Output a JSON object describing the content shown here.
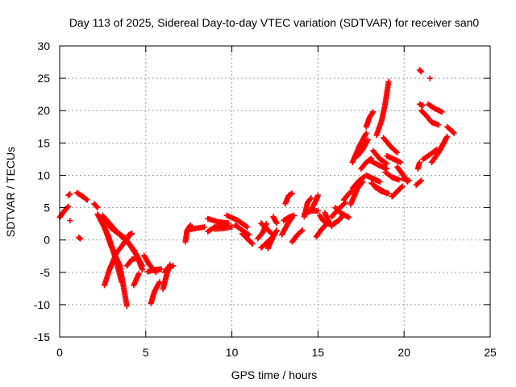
{
  "chart_data": {
    "type": "scatter",
    "title": "Day 113 of 2025, Sidereal Day-to-day VTEC variation (SDTVAR) for receiver san0",
    "xlabel": "GPS time / hours",
    "ylabel": "SDTVAR / TECUs",
    "xlim": [
      0,
      25
    ],
    "ylim": [
      -15,
      30
    ],
    "xticks": [
      0,
      5,
      10,
      15,
      20,
      25
    ],
    "yticks": [
      -15,
      -10,
      -5,
      0,
      5,
      10,
      15,
      20,
      25,
      30
    ],
    "grid": true,
    "marker": "+",
    "color": "#ff0000",
    "segments": [
      [
        [
          0.0,
          3.5
        ],
        [
          0.3,
          4.6
        ],
        [
          0.5,
          5.2
        ]
      ],
      [
        [
          0.5,
          6.9
        ],
        [
          0.6,
          7.1
        ]
      ],
      [
        [
          0.6,
          3.0
        ]
      ],
      [
        [
          1.0,
          7.3
        ],
        [
          1.3,
          6.8
        ],
        [
          1.6,
          6.2
        ]
      ],
      [
        [
          1.1,
          0.4
        ],
        [
          1.2,
          0.2
        ]
      ],
      [
        [
          2.0,
          5.6
        ],
        [
          2.2,
          5.0
        ]
      ],
      [
        [
          2.2,
          4.0
        ],
        [
          2.6,
          2.0
        ],
        [
          3.0,
          -1.0
        ],
        [
          3.5,
          -4.0
        ],
        [
          3.9,
          -10.2
        ]
      ],
      [
        [
          2.3,
          3.5
        ],
        [
          2.8,
          0.8
        ],
        [
          3.2,
          -2.5
        ],
        [
          3.6,
          -6.5
        ]
      ],
      [
        [
          2.5,
          3.8
        ],
        [
          3.0,
          1.8
        ],
        [
          3.5,
          0.8
        ],
        [
          4.0,
          -0.5
        ],
        [
          4.5,
          -2.5
        ],
        [
          4.8,
          -4.6
        ]
      ],
      [
        [
          2.7,
          3.2
        ],
        [
          3.3,
          1.3
        ],
        [
          3.8,
          0.3
        ],
        [
          4.3,
          -1.5
        ],
        [
          4.8,
          -4.0
        ]
      ],
      [
        [
          2.6,
          -7.0
        ],
        [
          2.9,
          -4.5
        ],
        [
          3.3,
          -2.0
        ],
        [
          3.7,
          -0.6
        ],
        [
          4.0,
          0.5
        ]
      ],
      [
        [
          3.9,
          -4.0
        ],
        [
          4.2,
          -3.0
        ],
        [
          4.5,
          -2.8
        ]
      ],
      [
        [
          4.0,
          0.8
        ],
        [
          4.2,
          1.0
        ]
      ],
      [
        [
          4.3,
          -7.0
        ],
        [
          4.6,
          -5.2
        ]
      ],
      [
        [
          4.9,
          -2.4
        ],
        [
          5.2,
          -3.8
        ],
        [
          5.6,
          -5.0
        ]
      ],
      [
        [
          5.1,
          -4.9
        ],
        [
          5.5,
          -4.6
        ],
        [
          5.9,
          -4.5
        ]
      ],
      [
        [
          5.3,
          -9.8
        ],
        [
          5.5,
          -8.0
        ],
        [
          5.8,
          -6.5
        ]
      ],
      [
        [
          6.0,
          -7.6
        ],
        [
          6.2,
          -5.5
        ],
        [
          6.4,
          -3.8
        ]
      ],
      [
        [
          6.1,
          -5.0
        ],
        [
          6.3,
          -4.2
        ],
        [
          6.6,
          -4.0
        ]
      ],
      [
        [
          7.3,
          -0.3
        ],
        [
          7.4,
          1.5
        ],
        [
          7.6,
          2.3
        ]
      ],
      [
        [
          7.5,
          1.6
        ],
        [
          7.9,
          1.8
        ],
        [
          8.4,
          2.0
        ]
      ],
      [
        [
          8.6,
          1.3
        ],
        [
          9.0,
          2.0
        ],
        [
          9.5,
          2.2
        ]
      ],
      [
        [
          8.6,
          3.3
        ],
        [
          9.2,
          2.8
        ],
        [
          9.8,
          2.6
        ]
      ],
      [
        [
          9.0,
          1.7
        ],
        [
          9.5,
          1.8
        ],
        [
          10.0,
          2.0
        ]
      ],
      [
        [
          9.7,
          3.8
        ],
        [
          10.3,
          3.1
        ],
        [
          10.9,
          2.0
        ]
      ],
      [
        [
          10.2,
          2.3
        ],
        [
          10.6,
          1.5
        ],
        [
          11.0,
          0.8
        ]
      ],
      [
        [
          10.6,
          1.0
        ],
        [
          10.9,
          0.2
        ],
        [
          11.2,
          -0.6
        ]
      ],
      [
        [
          11.5,
          0.2
        ],
        [
          11.8,
          1.2
        ],
        [
          12.0,
          2.5
        ]
      ],
      [
        [
          11.7,
          -1.2
        ],
        [
          12.0,
          -0.5
        ],
        [
          12.3,
          0.3
        ]
      ],
      [
        [
          11.7,
          2.6
        ],
        [
          12.0,
          1.8
        ],
        [
          12.3,
          1.0
        ]
      ],
      [
        [
          12.1,
          -1.3
        ],
        [
          12.3,
          0.0
        ],
        [
          12.6,
          1.5
        ]
      ],
      [
        [
          12.4,
          3.6
        ],
        [
          12.6,
          2.6
        ]
      ],
      [
        [
          12.9,
          0.8
        ],
        [
          13.2,
          2.3
        ],
        [
          13.5,
          3.5
        ]
      ],
      [
        [
          13.0,
          3.0
        ],
        [
          13.3,
          3.5
        ],
        [
          13.6,
          3.8
        ]
      ],
      [
        [
          13.1,
          5.6
        ],
        [
          13.3,
          6.9
        ],
        [
          13.5,
          7.2
        ]
      ],
      [
        [
          13.5,
          -0.3
        ],
        [
          13.8,
          0.8
        ],
        [
          14.1,
          1.5
        ]
      ],
      [
        [
          14.2,
          3.6
        ],
        [
          14.4,
          5.8
        ],
        [
          14.6,
          6.5
        ]
      ],
      [
        [
          14.2,
          4.0
        ],
        [
          14.6,
          4.5
        ],
        [
          15.0,
          4.5
        ]
      ],
      [
        [
          14.6,
          4.6
        ],
        [
          14.9,
          6.2
        ],
        [
          15.0,
          6.9
        ]
      ],
      [
        [
          14.9,
          0.5
        ],
        [
          15.2,
          1.6
        ],
        [
          15.5,
          2.5
        ]
      ],
      [
        [
          15.1,
          3.8
        ],
        [
          15.3,
          3.0
        ],
        [
          15.6,
          2.5
        ]
      ],
      [
        [
          15.4,
          4.2
        ],
        [
          15.6,
          3.0
        ],
        [
          15.8,
          2.1
        ]
      ],
      [
        [
          15.8,
          3.6
        ],
        [
          16.2,
          4.8
        ],
        [
          16.6,
          5.8
        ]
      ],
      [
        [
          15.9,
          2.5
        ],
        [
          16.2,
          3.0
        ],
        [
          16.5,
          4.0
        ]
      ],
      [
        [
          16.0,
          5.0
        ],
        [
          16.4,
          4.0
        ],
        [
          16.8,
          3.5
        ]
      ],
      [
        [
          16.5,
          6.2
        ],
        [
          16.8,
          7.2
        ],
        [
          17.0,
          7.6
        ]
      ],
      [
        [
          16.9,
          5.5
        ],
        [
          17.3,
          8.0
        ],
        [
          17.6,
          9.0
        ]
      ],
      [
        [
          17.0,
          8.0
        ],
        [
          17.4,
          9.2
        ],
        [
          17.7,
          9.8
        ]
      ],
      [
        [
          17.0,
          12.0
        ],
        [
          17.4,
          14.5
        ],
        [
          17.8,
          16.5
        ]
      ],
      [
        [
          17.3,
          13.0
        ],
        [
          17.6,
          14.0
        ],
        [
          17.9,
          15.5
        ]
      ],
      [
        [
          17.5,
          11.0
        ],
        [
          17.8,
          12.0
        ],
        [
          18.1,
          12.6
        ]
      ],
      [
        [
          17.8,
          10.0
        ],
        [
          18.2,
          9.5
        ],
        [
          18.6,
          9.0
        ]
      ],
      [
        [
          17.8,
          17.5
        ],
        [
          18.0,
          19.0
        ],
        [
          18.2,
          19.8
        ]
      ],
      [
        [
          18.0,
          12.3
        ],
        [
          18.5,
          11.6
        ],
        [
          19.0,
          11.0
        ]
      ],
      [
        [
          18.1,
          8.8
        ],
        [
          18.5,
          8.0
        ],
        [
          19.0,
          7.2
        ]
      ],
      [
        [
          18.2,
          13.8
        ],
        [
          18.6,
          12.5
        ],
        [
          19.0,
          11.8
        ]
      ],
      [
        [
          18.3,
          8.2
        ],
        [
          18.7,
          7.5
        ],
        [
          19.1,
          7.2
        ]
      ],
      [
        [
          18.4,
          16.2
        ],
        [
          18.7,
          18.5
        ],
        [
          18.9,
          21.0
        ],
        [
          19.1,
          24.5
        ]
      ],
      [
        [
          18.8,
          15.8
        ],
        [
          19.2,
          14.5
        ],
        [
          19.6,
          13.5
        ]
      ],
      [
        [
          18.9,
          10.5
        ],
        [
          19.3,
          9.7
        ],
        [
          19.7,
          9.3
        ]
      ],
      [
        [
          19.0,
          13.0
        ],
        [
          19.4,
          12.5
        ],
        [
          19.8,
          12.0
        ]
      ],
      [
        [
          19.3,
          6.7
        ],
        [
          19.6,
          7.5
        ],
        [
          19.9,
          8.3
        ]
      ],
      [
        [
          19.6,
          11.3
        ],
        [
          19.9,
          10.2
        ],
        [
          20.2,
          9.0
        ]
      ],
      [
        [
          19.9,
          9.5
        ],
        [
          20.3,
          9.2
        ]
      ],
      [
        [
          20.7,
          8.5
        ],
        [
          21.0,
          9.2
        ]
      ],
      [
        [
          20.8,
          11.0
        ],
        [
          20.9,
          12.0
        ]
      ],
      [
        [
          20.9,
          26.3
        ],
        [
          21.0,
          26.0
        ]
      ],
      [
        [
          20.9,
          21.0
        ],
        [
          21.1,
          20.8
        ]
      ],
      [
        [
          21.0,
          20.0
        ],
        [
          21.3,
          19.2
        ],
        [
          21.6,
          18.2
        ],
        [
          22.0,
          17.8
        ]
      ],
      [
        [
          21.1,
          12.5
        ],
        [
          21.5,
          13.2
        ],
        [
          21.9,
          14.0
        ]
      ],
      [
        [
          21.4,
          21.0
        ],
        [
          21.8,
          20.3
        ],
        [
          22.2,
          19.8
        ]
      ],
      [
        [
          21.5,
          25.0
        ]
      ],
      [
        [
          21.6,
          12.0
        ],
        [
          22.0,
          13.5
        ],
        [
          22.3,
          15.0
        ]
      ],
      [
        [
          22.1,
          14.0
        ],
        [
          22.3,
          15.0
        ],
        [
          22.5,
          16.0
        ]
      ],
      [
        [
          22.5,
          17.5
        ],
        [
          22.8,
          16.8
        ],
        [
          22.9,
          16.5
        ]
      ]
    ]
  }
}
